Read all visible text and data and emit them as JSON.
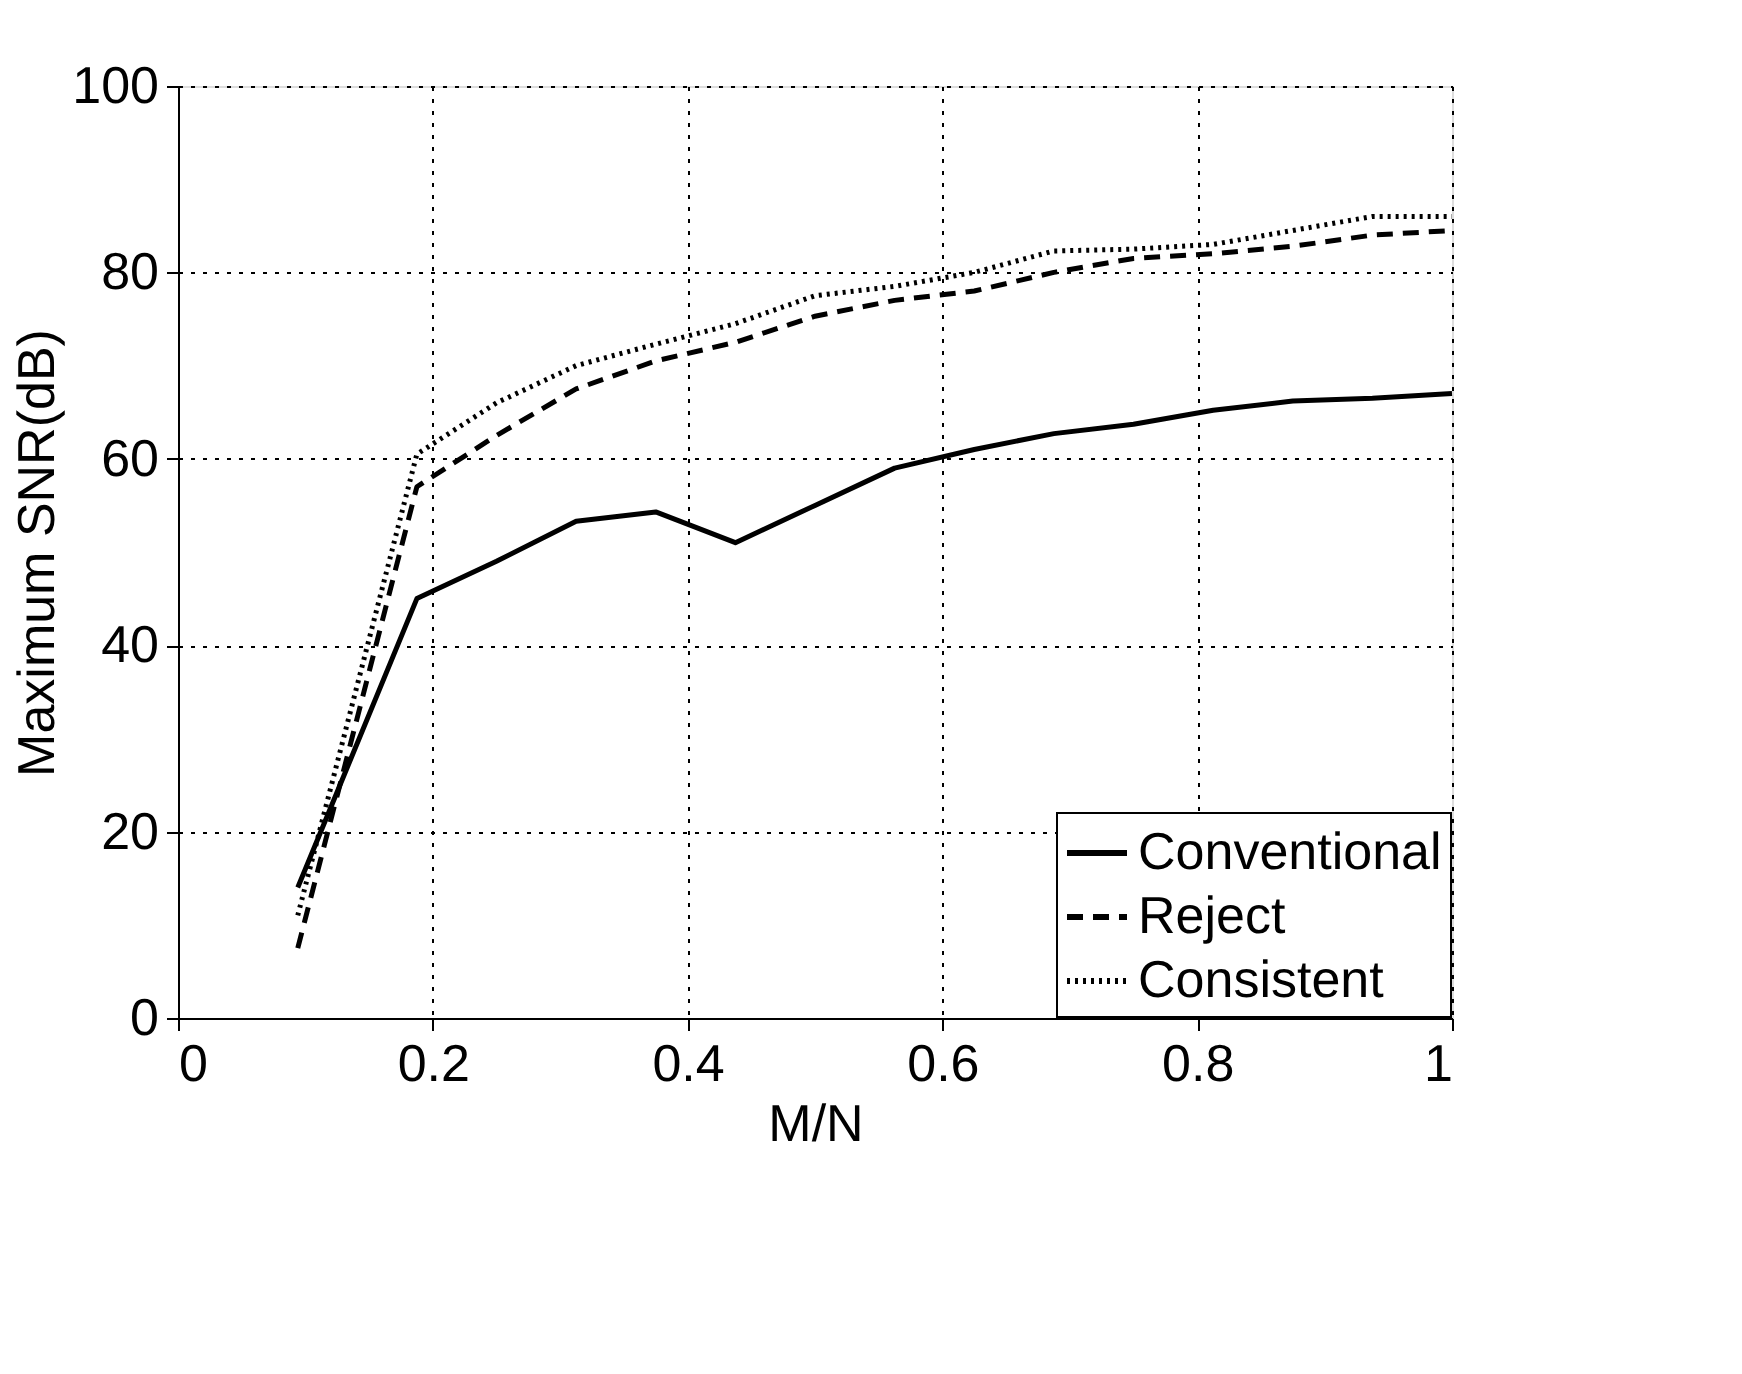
{
  "chart_data": {
    "type": "line",
    "xlabel": "M/N",
    "ylabel": "Maximum SNR(dB)",
    "x": [
      0.094,
      0.1875,
      0.25,
      0.3125,
      0.375,
      0.4375,
      0.5,
      0.5625,
      0.625,
      0.6875,
      0.75,
      0.8125,
      0.875,
      0.9375,
      1.0
    ],
    "series": [
      {
        "name": "Conventional",
        "color": "#000000",
        "line_style": "solid",
        "values": [
          14,
          45,
          49,
          53.3,
          54.3,
          51,
          55,
          59,
          61,
          62.7,
          63.7,
          65.2,
          66.2,
          66.5,
          67
        ]
      },
      {
        "name": "Reject",
        "color": "#000000",
        "line_style": "dashed",
        "values": [
          7.5,
          57,
          62.5,
          67.5,
          70.5,
          72.5,
          75.3,
          77,
          78,
          80,
          81.5,
          82,
          82.8,
          84,
          84.5
        ]
      },
      {
        "name": "Consistent",
        "color": "#000000",
        "line_style": "dotted",
        "values": [
          11,
          60.5,
          66,
          70,
          72.3,
          74.5,
          77.5,
          78.5,
          80,
          82.3,
          82.5,
          83,
          84.5,
          86,
          86
        ]
      }
    ],
    "xlim": [
      0,
      1
    ],
    "xticks": [
      0,
      0.2,
      0.4,
      0.6,
      0.8,
      1
    ],
    "ylim": [
      0,
      100
    ],
    "yticks": [
      0,
      20,
      40,
      60,
      80,
      100
    ],
    "grid": true,
    "legend": "bottom right",
    "marker": "none"
  }
}
